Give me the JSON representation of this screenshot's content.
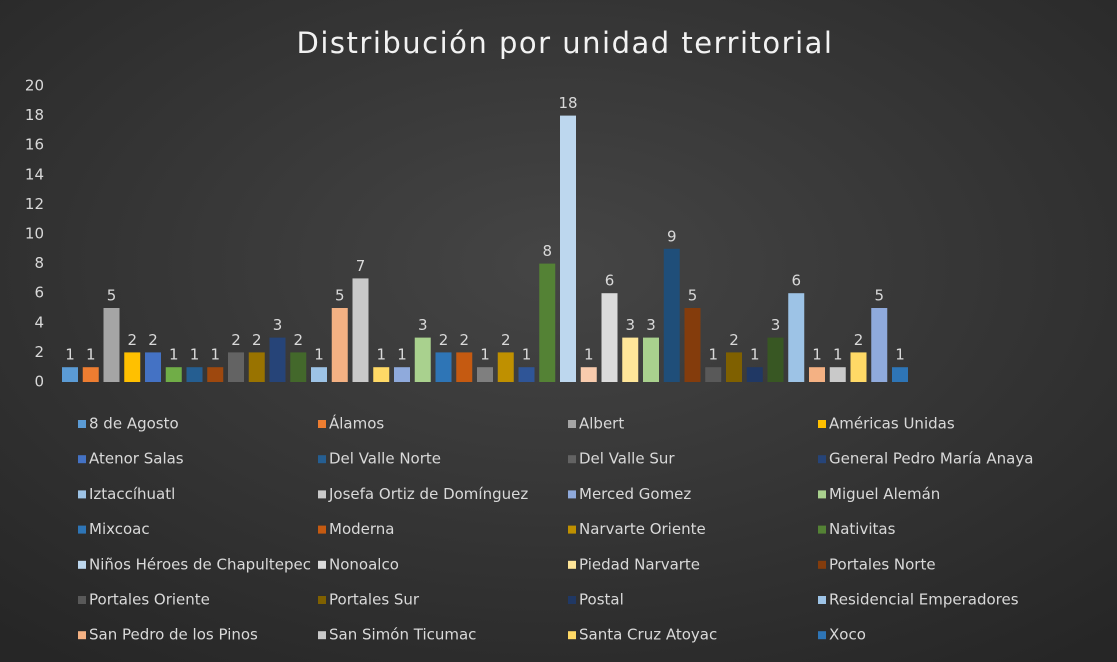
{
  "chart_data": {
    "type": "bar",
    "title": "Distribución por unidad territorial",
    "values": [
      1,
      1,
      5,
      2,
      2,
      1,
      1,
      1,
      2,
      2,
      3,
      2,
      1,
      5,
      7,
      1,
      1,
      3,
      2,
      2,
      1,
      2,
      1,
      8,
      18,
      1,
      6,
      3,
      3,
      9,
      5,
      1,
      2,
      1,
      3,
      6,
      1,
      1,
      2,
      5,
      1
    ],
    "colors": [
      "#5B9BD5",
      "#ED7D31",
      "#A5A5A5",
      "#FFC000",
      "#4472C4",
      "#70AD47",
      "#255E91",
      "#9E480E",
      "#636363",
      "#997300",
      "#264478",
      "#43682B",
      "#9DC3E6",
      "#F4B183",
      "#C9C9C9",
      "#FFD966",
      "#8FAADC",
      "#A9D18E",
      "#2E75B6",
      "#C55A11",
      "#7F7F7F",
      "#BF9000",
      "#2F5597",
      "#548235",
      "#BDD7EE",
      "#F8CBAD",
      "#DBDBDB",
      "#FFE699",
      "#A9D18E",
      "#1F4E79",
      "#843C0C",
      "#595959",
      "#7F6000",
      "#203864",
      "#385723",
      "#9DC3E6",
      "#F4B183",
      "#C9C9C9",
      "#FFD966",
      "#8FAADC",
      "#2E75B6"
    ],
    "ylim": [
      0,
      20
    ],
    "yticks": [
      0,
      2,
      4,
      6,
      8,
      10,
      12,
      14,
      16,
      18,
      20
    ],
    "legend": [
      {
        "name": "8 de Agosto",
        "color": "#5B9BD5"
      },
      {
        "name": "Álamos",
        "color": "#ED7D31"
      },
      {
        "name": "Albert",
        "color": "#A5A5A5"
      },
      {
        "name": "Américas Unidas",
        "color": "#FFC000"
      },
      {
        "name": "Atenor Salas",
        "color": "#4472C4"
      },
      {
        "name": "Del Valle Norte",
        "color": "#255E91"
      },
      {
        "name": "Del Valle Sur",
        "color": "#636363"
      },
      {
        "name": "General Pedro María Anaya",
        "color": "#264478"
      },
      {
        "name": "Iztaccíhuatl",
        "color": "#9DC3E6"
      },
      {
        "name": "Josefa Ortiz de Domínguez",
        "color": "#C9C9C9"
      },
      {
        "name": "Merced Gomez",
        "color": "#8FAADC"
      },
      {
        "name": "Miguel Alemán",
        "color": "#A9D18E"
      },
      {
        "name": "Mixcoac",
        "color": "#2E75B6"
      },
      {
        "name": "Moderna",
        "color": "#C55A11"
      },
      {
        "name": "Narvarte Oriente",
        "color": "#BF9000"
      },
      {
        "name": "Nativitas",
        "color": "#548235"
      },
      {
        "name": "Niños Héroes de Chapultepec",
        "color": "#BDD7EE"
      },
      {
        "name": "Nonoalco",
        "color": "#DBDBDB"
      },
      {
        "name": "Piedad Narvarte",
        "color": "#FFE699"
      },
      {
        "name": "Portales Norte",
        "color": "#843C0C"
      },
      {
        "name": "Portales Oriente",
        "color": "#595959"
      },
      {
        "name": "Portales Sur",
        "color": "#7F6000"
      },
      {
        "name": "Postal",
        "color": "#203864"
      },
      {
        "name": "Residencial Emperadores",
        "color": "#9DC3E6"
      },
      {
        "name": "San Pedro de los Pinos",
        "color": "#F4B183"
      },
      {
        "name": "San Simón Ticumac",
        "color": "#C9C9C9"
      },
      {
        "name": "Santa Cruz Atoyac",
        "color": "#FFD966"
      },
      {
        "name": "Xoco",
        "color": "#2E75B6"
      }
    ]
  }
}
